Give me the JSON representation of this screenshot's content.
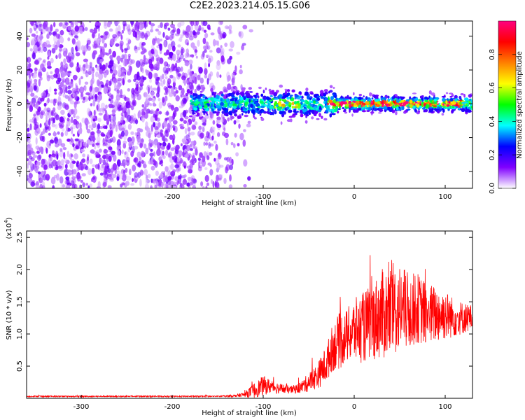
{
  "title": "C2E2.2023.214.05.15.G06",
  "chart_data": [
    {
      "type": "heatmap",
      "title": "C2E2.2023.214.05.15.G06",
      "xlabel": "Height of straight line (km)",
      "ylabel": "Frequency (Hz)",
      "xlim": [
        -360,
        130
      ],
      "ylim": [
        -50,
        49
      ],
      "xticks": [
        -300,
        -200,
        -100,
        0,
        100
      ],
      "yticks": [
        -40,
        -20,
        0,
        20,
        40
      ],
      "colorbar": {
        "label": "Normalized spectral amplitude",
        "range": [
          0,
          1
        ],
        "ticks": [
          0.0,
          0.2,
          0.4,
          0.6,
          0.8
        ],
        "colormap": [
          "#ffffff",
          "#8000ff",
          "#0000ff",
          "#00ffff",
          "#00ff00",
          "#ffff00",
          "#ff8000",
          "#ff0000",
          "#ff0080"
        ]
      },
      "features": {
        "noise_region_km": [
          -360,
          -130
        ],
        "signal_band_start_km": -180,
        "peak_amplitude_region_km": [
          -30,
          120
        ],
        "peak_frequency_hz": 0
      },
      "grid": false
    },
    {
      "type": "line",
      "xlabel": "Height of straight line (km)",
      "ylabel": "SNR (10 * v/v)",
      "yscale_label": "(x10",
      "yscale_exp": "4",
      "xlim": [
        -360,
        130
      ],
      "ylim": [
        0,
        2.6
      ],
      "xticks": [
        -300,
        -200,
        -100,
        0,
        100
      ],
      "yticks": [
        0.5,
        1.0,
        1.5,
        2.0,
        2.5
      ],
      "series": [
        {
          "color": "#ff0000",
          "x": [
            -360,
            -300,
            -200,
            -150,
            -130,
            -120,
            -110,
            -100,
            -90,
            -80,
            -70,
            -60,
            -50,
            -40,
            -30,
            -25,
            -20,
            -15,
            -10,
            -5,
            0,
            10,
            20,
            30,
            40,
            50,
            60,
            70,
            80,
            90,
            100,
            110,
            120,
            130
          ],
          "y": [
            0.03,
            0.03,
            0.03,
            0.03,
            0.04,
            0.06,
            0.12,
            0.2,
            0.18,
            0.15,
            0.13,
            0.16,
            0.25,
            0.35,
            0.55,
            0.75,
            0.85,
            0.9,
            0.95,
            1.0,
            1.05,
            1.1,
            1.2,
            1.3,
            1.35,
            1.4,
            1.35,
            1.4,
            1.3,
            1.3,
            1.3,
            1.25,
            1.25,
            1.25
          ],
          "spread": [
            0.01,
            0.01,
            0.01,
            0.01,
            0.02,
            0.04,
            0.12,
            0.15,
            0.1,
            0.08,
            0.06,
            0.08,
            0.15,
            0.2,
            0.3,
            0.35,
            0.4,
            0.45,
            0.4,
            0.45,
            0.5,
            0.55,
            0.6,
            0.7,
            0.75,
            0.7,
            0.6,
            0.55,
            0.5,
            0.45,
            0.4,
            0.3,
            0.25,
            0.2
          ]
        }
      ],
      "grid": false
    }
  ]
}
